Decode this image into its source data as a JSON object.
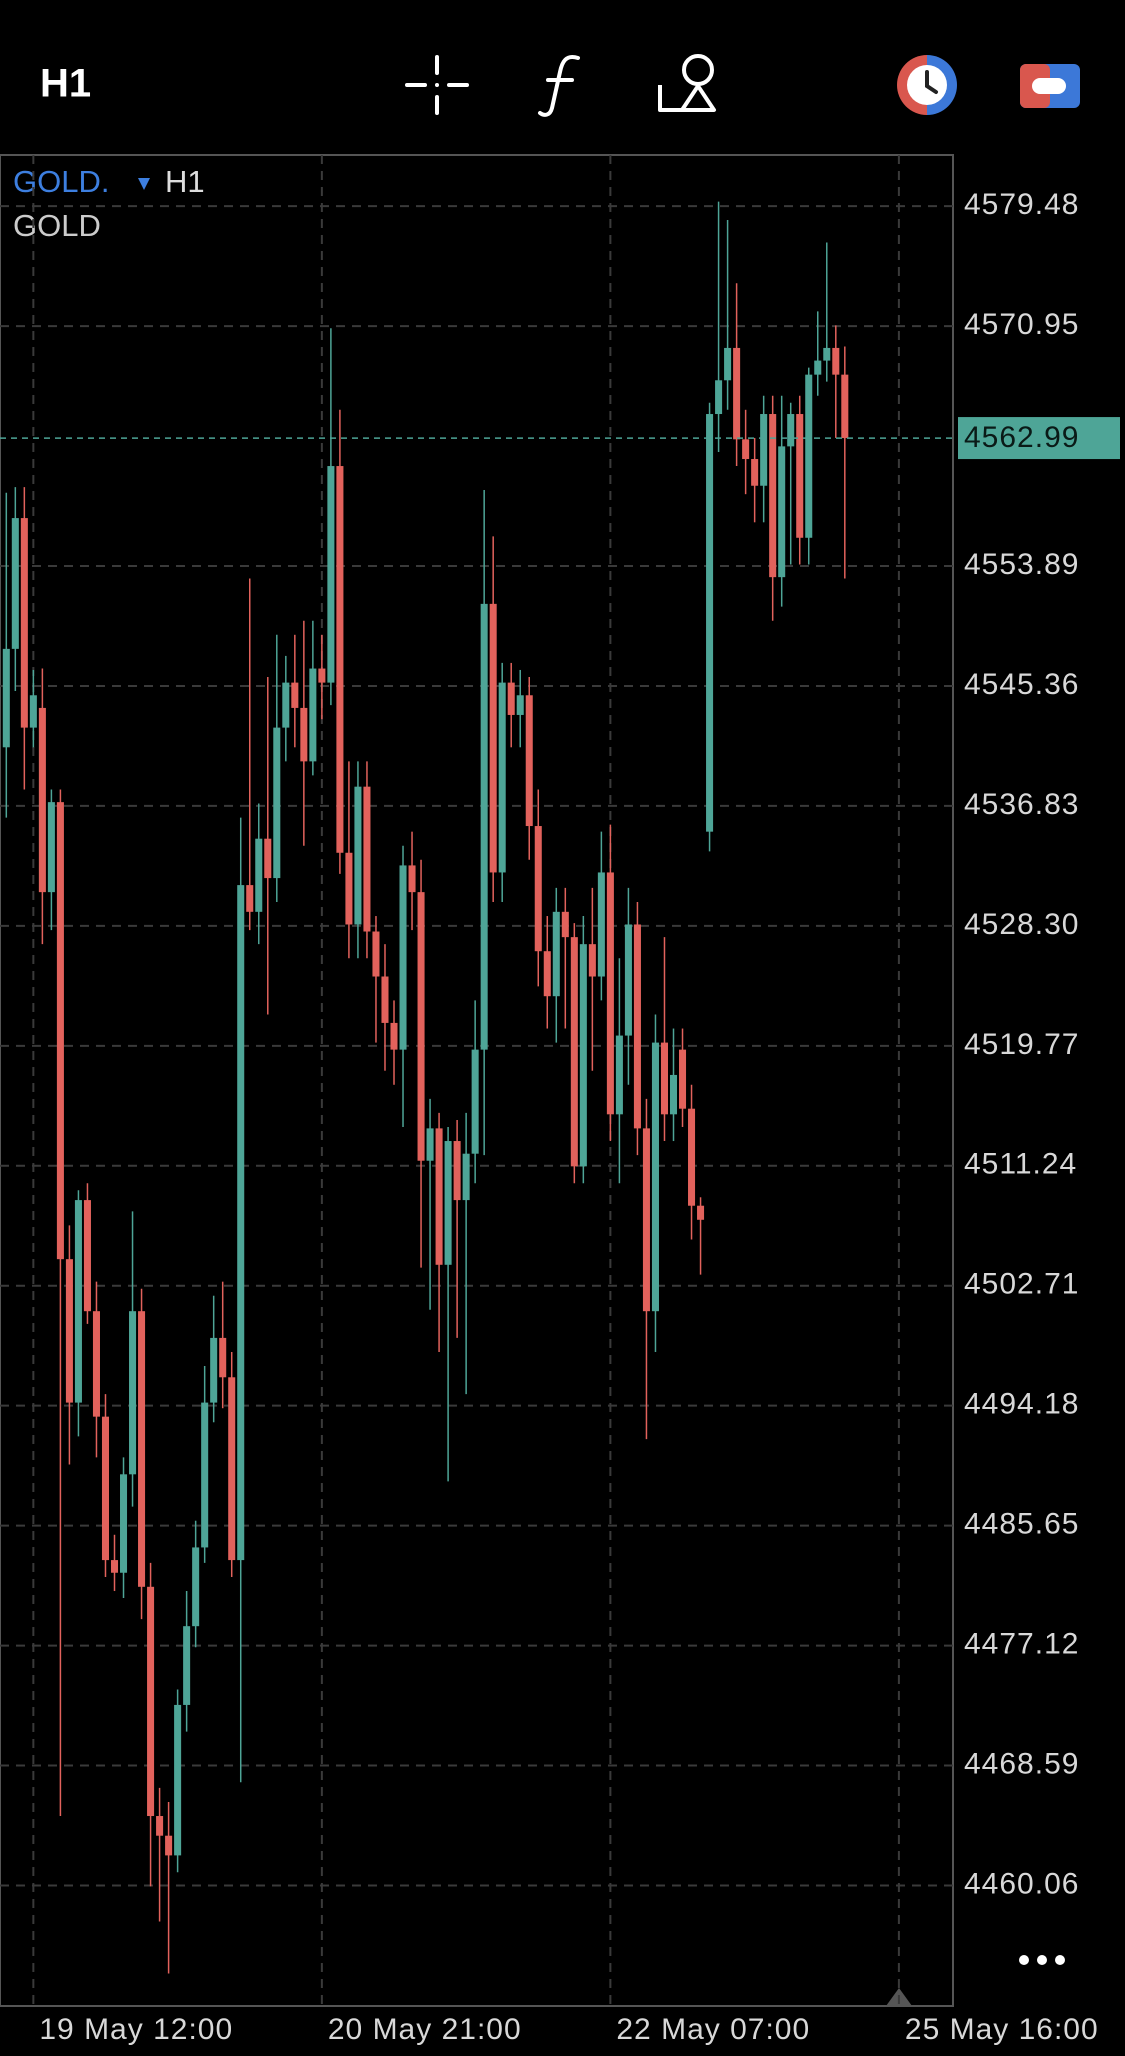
{
  "header": {
    "timeframe": "H1"
  },
  "chart_data": {
    "type": "candlestick",
    "symbol": "GOLD.",
    "timeframe": "H1",
    "description": "GOLD",
    "up_color": "#4ea597",
    "down_color": "#e2625c",
    "grid": true,
    "open": [
      4541.0,
      4548.0,
      4557.3,
      4542.4,
      4543.8,
      4530.7,
      4537.1,
      4504.6,
      4494.4,
      4508.8,
      4500.9,
      4493.4,
      4483.2,
      4482.3,
      4489.3,
      4500.9,
      4481.3,
      4465.0,
      4463.6,
      4462.2,
      4472.9,
      4478.5,
      4484.1,
      4494.4,
      4499.0,
      4496.2,
      4483.2,
      4531.2,
      4529.3,
      4534.5,
      4531.7,
      4542.4,
      4545.6,
      4543.8,
      4540.0,
      4546.6,
      4545.6,
      4561.0,
      4533.5,
      4528.4,
      4538.2,
      4527.9,
      4524.7,
      4521.4,
      4519.5,
      4532.6,
      4530.7,
      4511.6,
      4513.9,
      4504.2,
      4513.0,
      4508.8,
      4512.1,
      4519.5,
      4551.2,
      4532.1,
      4545.6,
      4543.3,
      4544.7,
      4535.4,
      4526.5,
      4523.3,
      4529.3,
      4527.5,
      4511.2,
      4527.0,
      4524.7,
      4532.1,
      4514.9,
      4520.5,
      4528.4,
      4513.9,
      4500.9,
      4520.0,
      4514.9,
      4519.5,
      4515.3,
      4508.4,
      4535.0,
      4564.7,
      4567.1,
      4569.4,
      4562.9,
      4561.5,
      4559.6,
      4564.7,
      4553.1,
      4562.4,
      4564.7,
      4555.9,
      4567.5,
      4568.5,
      4569.4,
      4567.5
    ],
    "high": [
      4559.1,
      4559.5,
      4559.5,
      4546.5,
      4546.6,
      4538.0,
      4538.0,
      4507.0,
      4509.5,
      4510.0,
      4503.0,
      4495.0,
      4485.0,
      4490.5,
      4508.0,
      4502.5,
      4483.0,
      4467.0,
      4466.0,
      4474.0,
      4481.0,
      4486.0,
      4497.0,
      4502.0,
      4503.0,
      4498.0,
      4536.0,
      4553.0,
      4537.0,
      4546.0,
      4549.0,
      4547.5,
      4549.0,
      4550.0,
      4550.0,
      4549.0,
      4570.8,
      4565.0,
      4540.0,
      4540.0,
      4540.0,
      4529.0,
      4527.0,
      4523.0,
      4534.0,
      4535.0,
      4533.0,
      4516.0,
      4515.0,
      4514.0,
      4514.5,
      4515.0,
      4523.0,
      4559.3,
      4556.0,
      4547.0,
      4547.0,
      4546.5,
      4546.0,
      4538.0,
      4529.0,
      4531.0,
      4531.0,
      4528.5,
      4529.0,
      4531.0,
      4535.0,
      4535.5,
      4526.0,
      4531.0,
      4530.0,
      4516.0,
      4522.0,
      4527.5,
      4521.0,
      4521.0,
      4517.0,
      4509.0,
      4565.5,
      4579.8,
      4578.5,
      4574.0,
      4565.0,
      4563.0,
      4566.0,
      4566.0,
      4566.0,
      4565.5,
      4566.0,
      4568.0,
      4572.0,
      4576.9,
      4571.0,
      4569.5
    ],
    "low": [
      4536.0,
      4545.0,
      4538.0,
      4541.0,
      4527.0,
      4528.0,
      4465.0,
      4490.0,
      4492.0,
      4500.0,
      4490.5,
      4482.0,
      4481.0,
      4480.5,
      4487.0,
      4479.0,
      4460.0,
      4457.5,
      4453.8,
      4461.0,
      4471.0,
      4477.0,
      4483.0,
      4493.0,
      4494.0,
      4482.0,
      4467.4,
      4528.0,
      4527.0,
      4522.0,
      4530.0,
      4540.0,
      4541.0,
      4534.0,
      4539.0,
      4543.0,
      4544.0,
      4532.0,
      4526.0,
      4526.0,
      4526.0,
      4520.0,
      4518.0,
      4517.0,
      4514.0,
      4528.0,
      4504.0,
      4501.0,
      4498.0,
      4488.8,
      4499.0,
      4495.0,
      4510.0,
      4512.0,
      4530.0,
      4530.0,
      4541.0,
      4541.0,
      4533.0,
      4524.0,
      4521.0,
      4520.0,
      4521.0,
      4510.0,
      4510.0,
      4518.0,
      4523.0,
      4513.0,
      4510.0,
      4517.0,
      4512.0,
      4491.8,
      4498.0,
      4513.0,
      4513.0,
      4514.0,
      4506.0,
      4503.5,
      4533.6,
      4562.0,
      4565.0,
      4561.0,
      4559.0,
      4557.0,
      4557.0,
      4550.0,
      4551.0,
      4554.0,
      4554.0,
      4554.0,
      4566.0,
      4567.0,
      4563.0,
      4553.0
    ],
    "close": [
      4548.0,
      4557.3,
      4542.4,
      4544.7,
      4530.7,
      4537.1,
      4504.6,
      4494.4,
      4508.8,
      4500.9,
      4493.4,
      4483.2,
      4482.3,
      4489.3,
      4500.9,
      4481.3,
      4465.0,
      4463.6,
      4462.2,
      4472.9,
      4478.5,
      4484.1,
      4494.4,
      4499.0,
      4496.2,
      4483.2,
      4531.2,
      4529.3,
      4534.5,
      4531.7,
      4542.4,
      4545.6,
      4543.8,
      4540.0,
      4546.6,
      4545.6,
      4561.0,
      4533.5,
      4528.4,
      4538.2,
      4527.9,
      4524.7,
      4521.4,
      4519.5,
      4532.6,
      4530.7,
      4511.6,
      4513.9,
      4504.2,
      4513.0,
      4508.8,
      4512.1,
      4519.5,
      4551.2,
      4532.1,
      4545.6,
      4543.3,
      4544.7,
      4535.4,
      4526.5,
      4523.3,
      4529.3,
      4527.5,
      4511.2,
      4527.0,
      4524.7,
      4532.1,
      4514.9,
      4520.5,
      4528.4,
      4513.9,
      4500.9,
      4520.0,
      4514.9,
      4517.7,
      4515.3,
      4508.4,
      4507.4,
      4564.7,
      4567.1,
      4569.4,
      4562.9,
      4561.5,
      4559.6,
      4564.7,
      4553.1,
      4562.4,
      4564.7,
      4555.9,
      4567.5,
      4568.5,
      4569.4,
      4567.5,
      4562.99
    ],
    "last_price": 4562.99,
    "xlim": [
      -0.7,
      105
    ],
    "xticks": [
      {
        "value": 3,
        "label": "19 May 12:00"
      },
      {
        "value": 35,
        "label": "20 May 21:00"
      },
      {
        "value": 67,
        "label": "22 May 07:00"
      },
      {
        "value": 99,
        "label": "25 May 16:00"
      }
    ],
    "ylim": [
      4451.49,
      4583.12
    ],
    "yticks": [
      4579.48,
      4570.95,
      4553.89,
      4545.36,
      4536.83,
      {
        "value": 4528.3,
        "label": "4528.30"
      },
      4519.77,
      4511.24,
      4502.71,
      4494.18,
      4485.65,
      4477.12,
      4468.59,
      4460.06
    ]
  }
}
